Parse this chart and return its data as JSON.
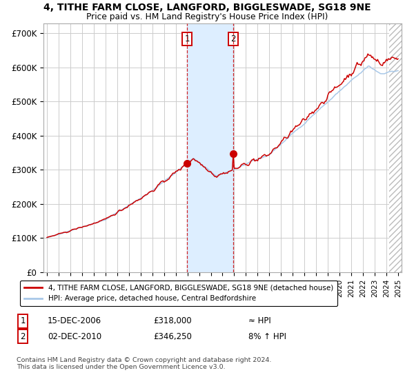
{
  "title_line1": "4, TITHE FARM CLOSE, LANGFORD, BIGGLESWADE, SG18 9NE",
  "title_line2": "Price paid vs. HM Land Registry's House Price Index (HPI)",
  "ylim": [
    0,
    730000
  ],
  "yticks": [
    0,
    100000,
    200000,
    300000,
    400000,
    500000,
    600000,
    700000
  ],
  "ytick_labels": [
    "£0",
    "£100K",
    "£200K",
    "£300K",
    "£400K",
    "£500K",
    "£600K",
    "£700K"
  ],
  "xlim_left": 1994.7,
  "xlim_right": 2025.3,
  "purchase1_date": 2006.96,
  "purchase1_price": 318000,
  "purchase2_date": 2010.92,
  "purchase2_price": 346250,
  "hpi_color": "#a8c8e8",
  "price_color": "#cc0000",
  "shade_color": "#ddeeff",
  "grid_color": "#cccccc",
  "hatch_start": 2024.25,
  "legend_label1": "4, TITHE FARM CLOSE, LANGFORD, BIGGLESWADE, SG18 9NE (detached house)",
  "legend_label2": "HPI: Average price, detached house, Central Bedfordshire",
  "table_row1_num": "1",
  "table_row1_date": "15-DEC-2006",
  "table_row1_price": "£318,000",
  "table_row1_hpi": "≈ HPI",
  "table_row2_num": "2",
  "table_row2_date": "02-DEC-2010",
  "table_row2_price": "£346,250",
  "table_row2_hpi": "8% ↑ HPI",
  "footer": "Contains HM Land Registry data © Crown copyright and database right 2024.\nThis data is licensed under the Open Government Licence v3.0."
}
